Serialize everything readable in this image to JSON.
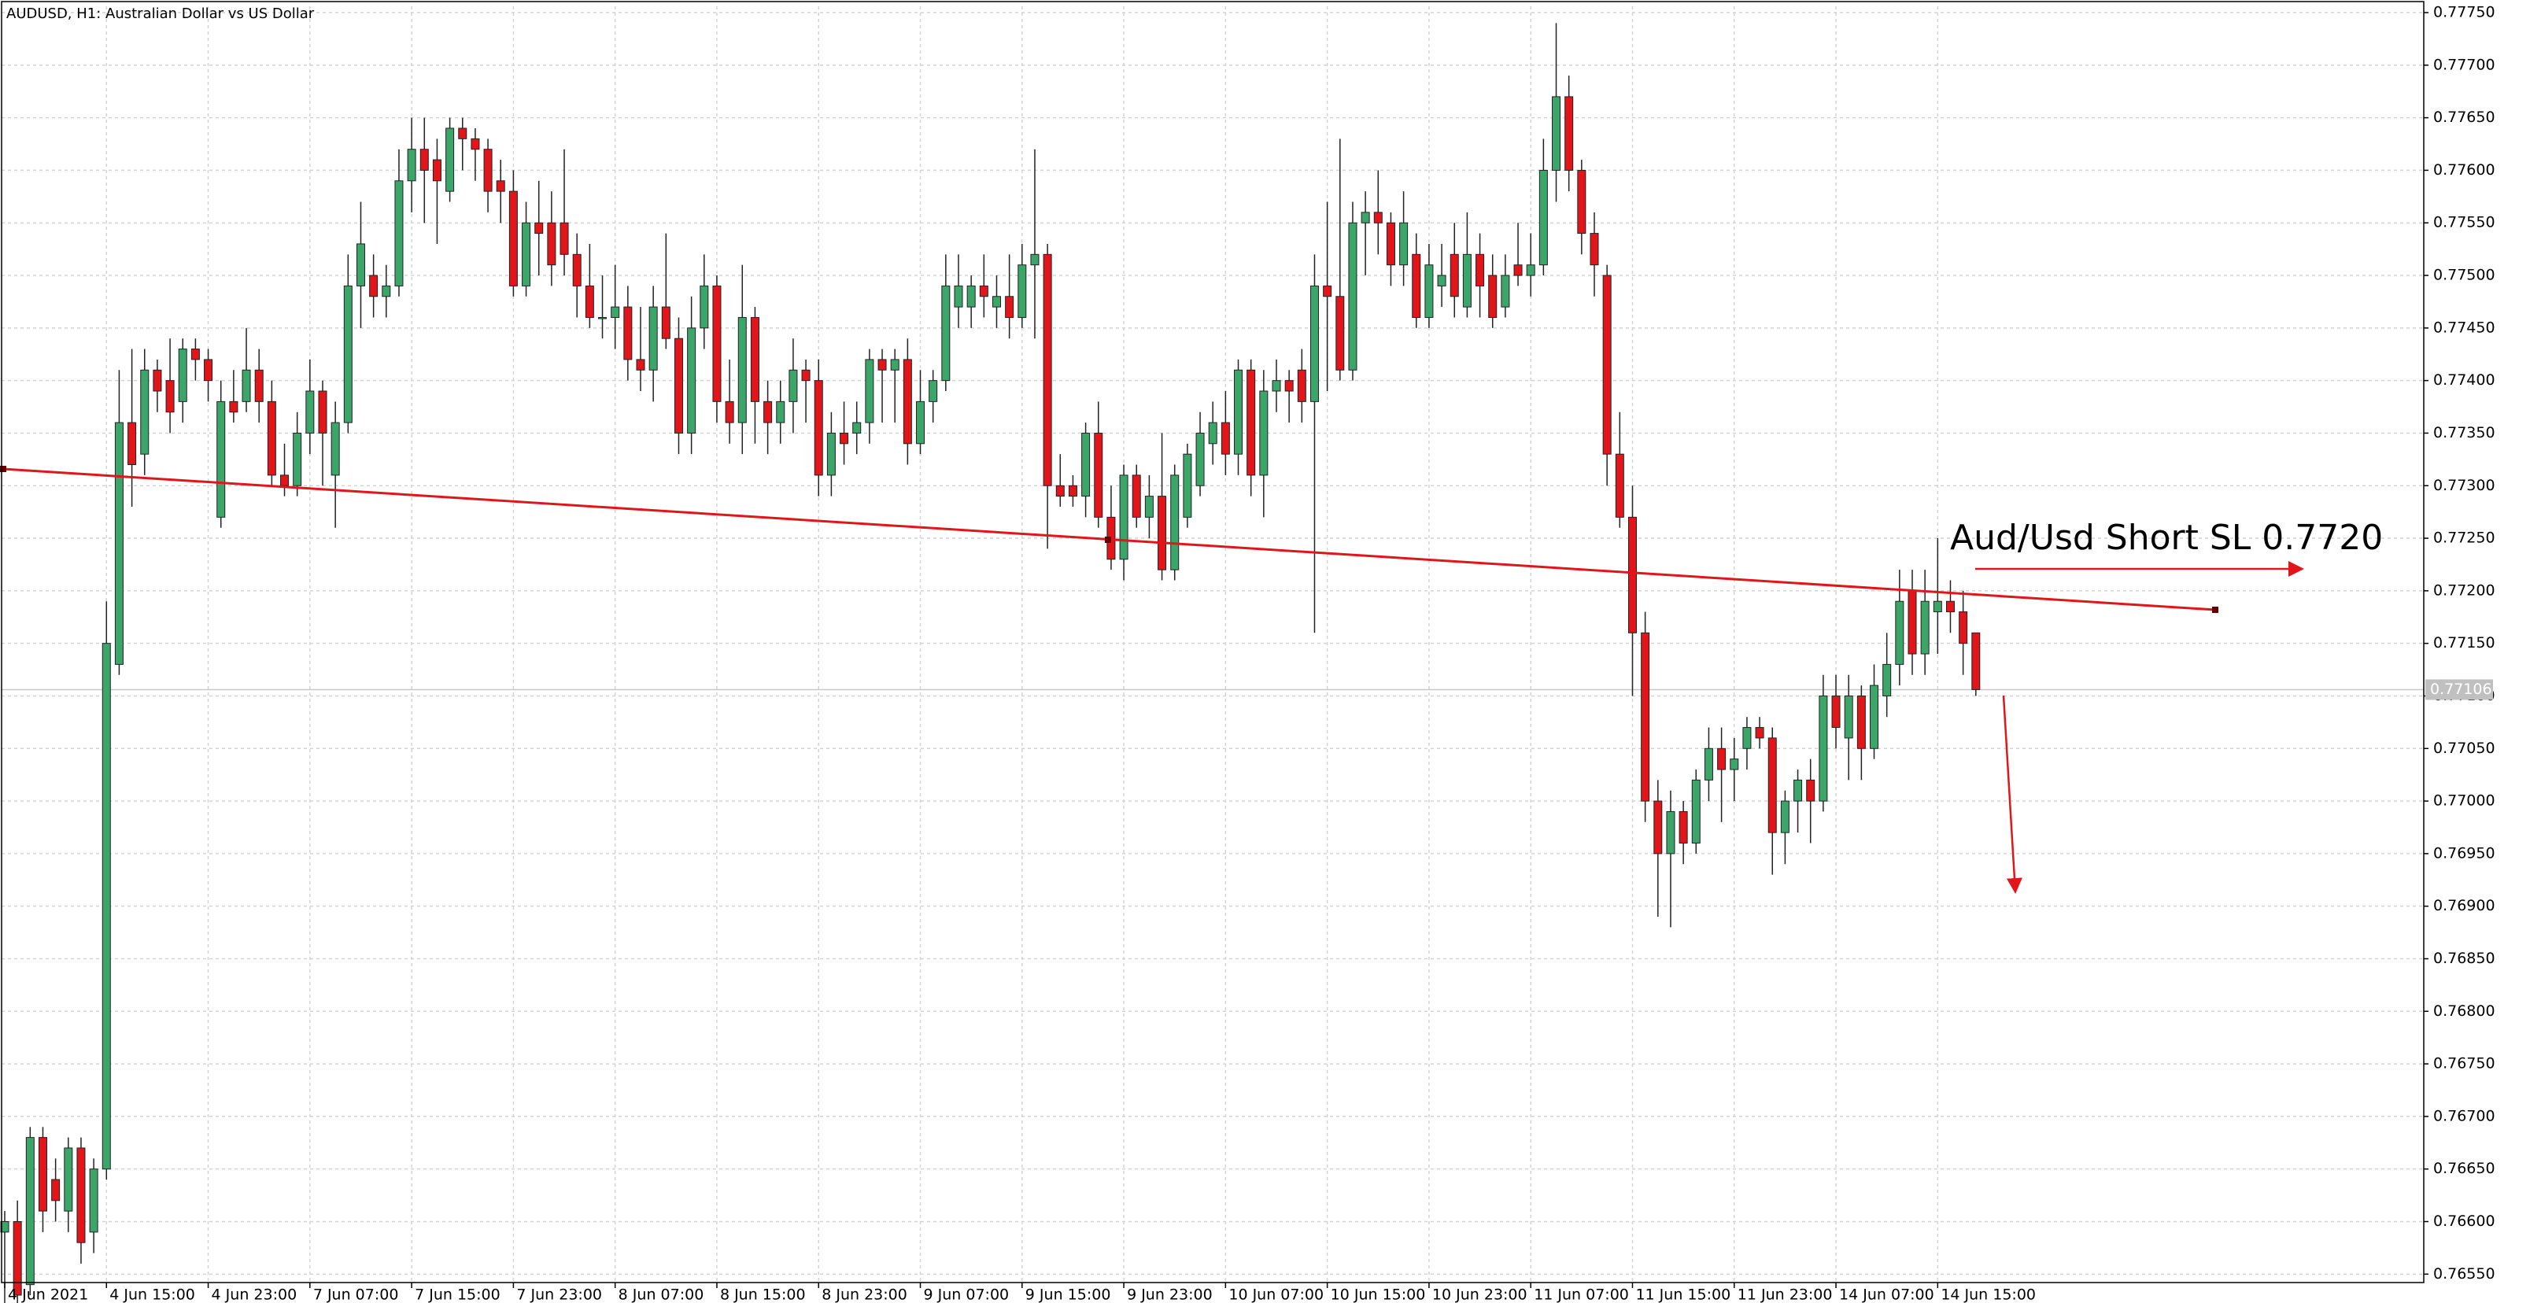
{
  "chart_data": {
    "type": "candlestick",
    "title": "AUDUSD, H1:  Australian Dollar vs US Dollar",
    "annotation": "Aud/Usd Short SL 0.7720",
    "up_color": "#3ca56a",
    "down_color": "#e0161b",
    "grid": true,
    "last_price": 0.77106,
    "ylim": [
      0.76542,
      0.77756
    ],
    "yticks": [
      {
        "value": 0.7655,
        "label": "0.76550"
      },
      {
        "value": 0.766,
        "label": "0.76600"
      },
      {
        "value": 0.7665,
        "label": "0.76650"
      },
      {
        "value": 0.767,
        "label": "0.76700"
      },
      {
        "value": 0.7675,
        "label": "0.76750"
      },
      {
        "value": 0.768,
        "label": "0.76800"
      },
      {
        "value": 0.7685,
        "label": "0.76850"
      },
      {
        "value": 0.769,
        "label": "0.76900"
      },
      {
        "value": 0.7695,
        "label": "0.76950"
      },
      {
        "value": 0.77,
        "label": "0.77000"
      },
      {
        "value": 0.7705,
        "label": "0.77050"
      },
      {
        "value": 0.771,
        "label": "0.77100"
      },
      {
        "value": 0.7715,
        "label": "0.77150"
      },
      {
        "value": 0.772,
        "label": "0.77200"
      },
      {
        "value": 0.7725,
        "label": "0.77250"
      },
      {
        "value": 0.773,
        "label": "0.77300"
      },
      {
        "value": 0.7735,
        "label": "0.77350"
      },
      {
        "value": 0.774,
        "label": "0.77400"
      },
      {
        "value": 0.7745,
        "label": "0.77450"
      },
      {
        "value": 0.775,
        "label": "0.77500"
      },
      {
        "value": 0.7755,
        "label": "0.77550"
      },
      {
        "value": 0.776,
        "label": "0.77600"
      },
      {
        "value": 0.7765,
        "label": "0.77650"
      },
      {
        "value": 0.777,
        "label": "0.77700"
      },
      {
        "value": 0.7775,
        "label": "0.77750"
      }
    ],
    "categories": [
      "4 Jun 2021",
      null,
      null,
      null,
      null,
      null,
      null,
      null,
      "4 Jun 15:00",
      null,
      null,
      null,
      null,
      null,
      null,
      null,
      "4 Jun 23:00",
      null,
      null,
      null,
      null,
      null,
      null,
      null,
      "7 Jun 07:00",
      null,
      null,
      null,
      null,
      null,
      null,
      null,
      "7 Jun 15:00",
      null,
      null,
      null,
      null,
      null,
      null,
      null,
      "7 Jun 23:00",
      null,
      null,
      null,
      null,
      null,
      null,
      null,
      "8 Jun 07:00",
      null,
      null,
      null,
      null,
      null,
      null,
      null,
      "8 Jun 15:00",
      null,
      null,
      null,
      null,
      null,
      null,
      null,
      "8 Jun 23:00",
      null,
      null,
      null,
      null,
      null,
      null,
      null,
      "9 Jun 07:00",
      null,
      null,
      null,
      null,
      null,
      null,
      null,
      "9 Jun 15:00",
      null,
      null,
      null,
      null,
      null,
      null,
      null,
      "9 Jun 23:00",
      null,
      null,
      null,
      null,
      null,
      null,
      null,
      "10 Jun 07:00",
      null,
      null,
      null,
      null,
      null,
      null,
      null,
      "10 Jun 15:00",
      null,
      null,
      null,
      null,
      null,
      null,
      null,
      "10 Jun 23:00",
      null,
      null,
      null,
      null,
      null,
      null,
      null,
      "11 Jun 07:00",
      null,
      null,
      null,
      null,
      null,
      null,
      null,
      "11 Jun 15:00",
      null,
      null,
      null,
      null,
      null,
      null,
      null,
      "11 Jun 23:00",
      null,
      null,
      null,
      null,
      null,
      null,
      null,
      "14 Jun 07:00",
      null,
      null,
      null,
      null,
      null,
      null,
      null,
      "14 Jun 15:00",
      null,
      null,
      null
    ],
    "values": [
      [
        0.7659,
        0.7661,
        0.7652,
        0.766
      ],
      [
        0.766,
        0.7662,
        0.7651,
        0.7653
      ],
      [
        0.7654,
        0.7669,
        0.7653,
        0.7668
      ],
      [
        0.7668,
        0.7669,
        0.7659,
        0.7661
      ],
      [
        0.7664,
        0.7666,
        0.766,
        0.7662
      ],
      [
        0.7661,
        0.7668,
        0.7659,
        0.7667
      ],
      [
        0.7667,
        0.7668,
        0.7656,
        0.7658
      ],
      [
        0.7659,
        0.7666,
        0.7657,
        0.7665
      ],
      [
        0.7665,
        0.7719,
        0.7664,
        0.7715
      ],
      [
        0.7713,
        0.7741,
        0.7712,
        0.7736
      ],
      [
        0.7736,
        0.7743,
        0.7728,
        0.7732
      ],
      [
        0.7733,
        0.7743,
        0.7731,
        0.7741
      ],
      [
        0.7741,
        0.7742,
        0.7737,
        0.7739
      ],
      [
        0.774,
        0.7744,
        0.7735,
        0.7737
      ],
      [
        0.7738,
        0.7744,
        0.7736,
        0.7743
      ],
      [
        0.7743,
        0.7744,
        0.774,
        0.7742
      ],
      [
        0.7742,
        0.7743,
        0.7738,
        0.774
      ],
      [
        0.7727,
        0.774,
        0.7726,
        0.7738
      ],
      [
        0.7738,
        0.7741,
        0.7736,
        0.7737
      ],
      [
        0.7738,
        0.7745,
        0.7737,
        0.7741
      ],
      [
        0.7741,
        0.7743,
        0.7736,
        0.7738
      ],
      [
        0.7738,
        0.774,
        0.773,
        0.7731
      ],
      [
        0.7731,
        0.7734,
        0.7729,
        0.773
      ],
      [
        0.773,
        0.7737,
        0.7729,
        0.7735
      ],
      [
        0.7735,
        0.7742,
        0.7733,
        0.7739
      ],
      [
        0.7739,
        0.774,
        0.773,
        0.7735
      ],
      [
        0.7731,
        0.7738,
        0.7726,
        0.7736
      ],
      [
        0.7736,
        0.7752,
        0.7735,
        0.7749
      ],
      [
        0.7749,
        0.7757,
        0.7745,
        0.7753
      ],
      [
        0.775,
        0.7752,
        0.7746,
        0.7748
      ],
      [
        0.7748,
        0.7751,
        0.7746,
        0.7749
      ],
      [
        0.7749,
        0.7762,
        0.7748,
        0.7759
      ],
      [
        0.7759,
        0.7765,
        0.7756,
        0.7762
      ],
      [
        0.7762,
        0.7765,
        0.7755,
        0.776
      ],
      [
        0.7761,
        0.7763,
        0.7753,
        0.7759
      ],
      [
        0.7758,
        0.7765,
        0.7757,
        0.7764
      ],
      [
        0.7764,
        0.7765,
        0.776,
        0.7763
      ],
      [
        0.7763,
        0.7764,
        0.7759,
        0.7762
      ],
      [
        0.7762,
        0.7763,
        0.7756,
        0.7758
      ],
      [
        0.7759,
        0.7761,
        0.7755,
        0.7758
      ],
      [
        0.7758,
        0.776,
        0.7748,
        0.7749
      ],
      [
        0.7749,
        0.7757,
        0.7748,
        0.7755
      ],
      [
        0.7755,
        0.7759,
        0.775,
        0.7754
      ],
      [
        0.7755,
        0.7758,
        0.7749,
        0.7751
      ],
      [
        0.7755,
        0.7762,
        0.775,
        0.7752
      ],
      [
        0.7752,
        0.7754,
        0.7746,
        0.7749
      ],
      [
        0.7749,
        0.7753,
        0.7745,
        0.7746
      ],
      [
        0.7746,
        0.775,
        0.7744,
        0.7746
      ],
      [
        0.7746,
        0.7751,
        0.7743,
        0.7747
      ],
      [
        0.7747,
        0.7749,
        0.774,
        0.7742
      ],
      [
        0.7742,
        0.7747,
        0.7739,
        0.7741
      ],
      [
        0.7741,
        0.7749,
        0.7738,
        0.7747
      ],
      [
        0.7747,
        0.7754,
        0.7743,
        0.7744
      ],
      [
        0.7744,
        0.7746,
        0.7733,
        0.7735
      ],
      [
        0.7735,
        0.7748,
        0.7733,
        0.7745
      ],
      [
        0.7745,
        0.7752,
        0.7743,
        0.7749
      ],
      [
        0.7749,
        0.775,
        0.7736,
        0.7738
      ],
      [
        0.7738,
        0.7742,
        0.7734,
        0.7736
      ],
      [
        0.7736,
        0.7751,
        0.7733,
        0.7746
      ],
      [
        0.7746,
        0.7747,
        0.7734,
        0.7738
      ],
      [
        0.7738,
        0.774,
        0.7733,
        0.7736
      ],
      [
        0.7736,
        0.774,
        0.7734,
        0.7738
      ],
      [
        0.7738,
        0.7744,
        0.7735,
        0.7741
      ],
      [
        0.7741,
        0.7742,
        0.7736,
        0.774
      ],
      [
        0.774,
        0.7742,
        0.7729,
        0.7731
      ],
      [
        0.7731,
        0.7737,
        0.7729,
        0.7735
      ],
      [
        0.7735,
        0.7738,
        0.7732,
        0.7734
      ],
      [
        0.7735,
        0.7738,
        0.7733,
        0.7736
      ],
      [
        0.7736,
        0.7743,
        0.7734,
        0.7742
      ],
      [
        0.7742,
        0.7743,
        0.7736,
        0.7741
      ],
      [
        0.7741,
        0.7743,
        0.7736,
        0.7742
      ],
      [
        0.7742,
        0.7744,
        0.7732,
        0.7734
      ],
      [
        0.7734,
        0.7741,
        0.7733,
        0.7738
      ],
      [
        0.7738,
        0.7741,
        0.7736,
        0.774
      ],
      [
        0.774,
        0.7752,
        0.7739,
        0.7749
      ],
      [
        0.7747,
        0.7752,
        0.7745,
        0.7749
      ],
      [
        0.7747,
        0.775,
        0.7745,
        0.7749
      ],
      [
        0.7749,
        0.7752,
        0.7746,
        0.7748
      ],
      [
        0.7747,
        0.775,
        0.7745,
        0.7748
      ],
      [
        0.7748,
        0.7752,
        0.7744,
        0.7746
      ],
      [
        0.7746,
        0.7753,
        0.7745,
        0.7751
      ],
      [
        0.7751,
        0.7762,
        0.7744,
        0.7752
      ],
      [
        0.7752,
        0.7753,
        0.7724,
        0.773
      ],
      [
        0.773,
        0.7733,
        0.7728,
        0.7729
      ],
      [
        0.773,
        0.7731,
        0.7728,
        0.7729
      ],
      [
        0.7729,
        0.7736,
        0.7727,
        0.7735
      ],
      [
        0.7735,
        0.7738,
        0.7726,
        0.7727
      ],
      [
        0.7727,
        0.773,
        0.7722,
        0.7723
      ],
      [
        0.7723,
        0.7732,
        0.7721,
        0.7731
      ],
      [
        0.7731,
        0.7732,
        0.7726,
        0.7727
      ],
      [
        0.7727,
        0.7731,
        0.7725,
        0.7729
      ],
      [
        0.7729,
        0.7735,
        0.7721,
        0.7722
      ],
      [
        0.7722,
        0.7732,
        0.7721,
        0.7731
      ],
      [
        0.7727,
        0.7734,
        0.7726,
        0.7733
      ],
      [
        0.773,
        0.7737,
        0.7729,
        0.7735
      ],
      [
        0.7734,
        0.7738,
        0.7732,
        0.7736
      ],
      [
        0.7736,
        0.7739,
        0.7731,
        0.7733
      ],
      [
        0.7733,
        0.7742,
        0.7731,
        0.7741
      ],
      [
        0.7741,
        0.7742,
        0.7729,
        0.7731
      ],
      [
        0.7731,
        0.7741,
        0.7727,
        0.7739
      ],
      [
        0.7739,
        0.7742,
        0.7737,
        0.774
      ],
      [
        0.774,
        0.7741,
        0.7736,
        0.7739
      ],
      [
        0.7741,
        0.7743,
        0.7736,
        0.7738
      ],
      [
        0.7738,
        0.7752,
        0.7716,
        0.7749
      ],
      [
        0.7749,
        0.7757,
        0.7739,
        0.7748
      ],
      [
        0.7748,
        0.7763,
        0.774,
        0.7741
      ],
      [
        0.7741,
        0.7757,
        0.774,
        0.7755
      ],
      [
        0.7755,
        0.7758,
        0.775,
        0.7756
      ],
      [
        0.7756,
        0.776,
        0.7752,
        0.7755
      ],
      [
        0.7755,
        0.7756,
        0.7749,
        0.7751
      ],
      [
        0.7751,
        0.7758,
        0.7749,
        0.7755
      ],
      [
        0.7752,
        0.7754,
        0.7745,
        0.7746
      ],
      [
        0.7746,
        0.7753,
        0.7745,
        0.7751
      ],
      [
        0.7749,
        0.7753,
        0.7747,
        0.775
      ],
      [
        0.7752,
        0.7755,
        0.7746,
        0.7748
      ],
      [
        0.7747,
        0.7756,
        0.7746,
        0.7752
      ],
      [
        0.7752,
        0.7754,
        0.7746,
        0.7749
      ],
      [
        0.775,
        0.7752,
        0.7745,
        0.7746
      ],
      [
        0.7747,
        0.7752,
        0.7746,
        0.775
      ],
      [
        0.7751,
        0.7755,
        0.7749,
        0.775
      ],
      [
        0.775,
        0.7754,
        0.7748,
        0.7751
      ],
      [
        0.7751,
        0.7763,
        0.775,
        0.776
      ],
      [
        0.776,
        0.7774,
        0.7757,
        0.7767
      ],
      [
        0.7767,
        0.7769,
        0.7758,
        0.776
      ],
      [
        0.776,
        0.7761,
        0.7752,
        0.7754
      ],
      [
        0.7754,
        0.7756,
        0.7748,
        0.7751
      ],
      [
        0.775,
        0.7751,
        0.773,
        0.7733
      ],
      [
        0.7733,
        0.7737,
        0.7726,
        0.7727
      ],
      [
        0.7727,
        0.773,
        0.771,
        0.7716
      ],
      [
        0.7716,
        0.7718,
        0.7698,
        0.77
      ],
      [
        0.77,
        0.7702,
        0.7689,
        0.7695
      ],
      [
        0.7695,
        0.7701,
        0.7688,
        0.7699
      ],
      [
        0.7699,
        0.77,
        0.7694,
        0.7696
      ],
      [
        0.7696,
        0.7703,
        0.7695,
        0.7702
      ],
      [
        0.7702,
        0.7707,
        0.77,
        0.7705
      ],
      [
        0.7705,
        0.7707,
        0.7698,
        0.7703
      ],
      [
        0.7703,
        0.7706,
        0.77,
        0.7704
      ],
      [
        0.7705,
        0.7708,
        0.7703,
        0.7707
      ],
      [
        0.7707,
        0.7708,
        0.7705,
        0.7706
      ],
      [
        0.7706,
        0.7707,
        0.7693,
        0.7697
      ],
      [
        0.7697,
        0.7701,
        0.7694,
        0.77
      ],
      [
        0.77,
        0.7703,
        0.7697,
        0.7702
      ],
      [
        0.7702,
        0.7704,
        0.7696,
        0.77
      ],
      [
        0.77,
        0.7712,
        0.7699,
        0.771
      ],
      [
        0.771,
        0.7712,
        0.7705,
        0.7707
      ],
      [
        0.7706,
        0.7712,
        0.7702,
        0.771
      ],
      [
        0.771,
        0.7711,
        0.7702,
        0.7705
      ],
      [
        0.7705,
        0.7713,
        0.7704,
        0.7711
      ],
      [
        0.771,
        0.7716,
        0.7708,
        0.7713
      ],
      [
        0.7713,
        0.7722,
        0.7711,
        0.7719
      ],
      [
        0.772,
        0.7722,
        0.7712,
        0.7714
      ],
      [
        0.7714,
        0.7722,
        0.7712,
        0.7719
      ],
      [
        0.7718,
        0.7725,
        0.7714,
        0.7719
      ],
      [
        0.7719,
        0.7721,
        0.7716,
        0.7718
      ],
      [
        0.7718,
        0.772,
        0.7712,
        0.7715
      ],
      [
        0.7716,
        0.7716,
        0.771,
        0.77106
      ]
    ]
  }
}
